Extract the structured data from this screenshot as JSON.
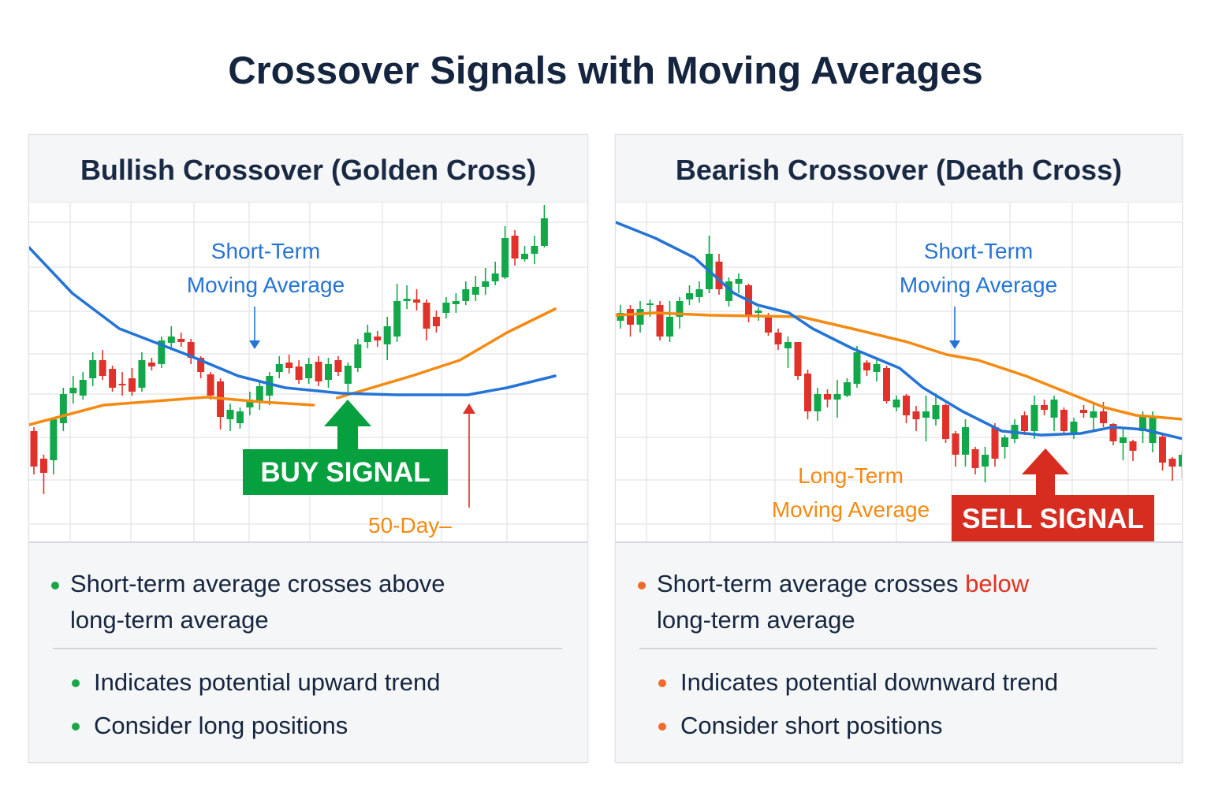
{
  "title": "Crossover Signals with Moving Averages",
  "colors": {
    "up": "#12a84a",
    "down": "#e0322a",
    "short_ma": "#2474d6",
    "long_ma": "#f58a12",
    "buy": "#06a03f",
    "sell": "#d72c20",
    "text": "#16263f"
  },
  "panels": [
    {
      "title": "Bullish Crossover (Golden Cross)",
      "short_label_1": "Short-Term",
      "short_label_2": "Moving Average",
      "long_label": "50-Day–",
      "signal": "BUY SIGNAL",
      "bullet_main": "Short-term average crosses above",
      "bullet_main_2": "long-term average",
      "bullets": [
        "Indicates potential upward trend",
        "Consider long positions"
      ],
      "bullet_color": "#1aa547"
    },
    {
      "title": "Bearish Crossover (Death Cross)",
      "short_label_1": "Short-Term",
      "short_label_2": "Moving Average",
      "long_label_1": "Long-Term",
      "long_label_2": "Moving Average",
      "signal": "SELL SIGNAL",
      "bullet_main_pre": "Short-term average crosses ",
      "bullet_main_hl": "below",
      "bullet_main_2": "long-term average",
      "bullets": [
        "Indicates potential downward trend",
        "Consider short positions"
      ],
      "bullet_color": "#f26a2a"
    }
  ],
  "chart_data": [
    {
      "type": "candlestick",
      "title": "Bullish Crossover (Golden Cross)",
      "grid": true,
      "ylim": [
        0,
        86
      ],
      "candles_ohlc": [
        [
          28,
          29,
          17,
          19
        ],
        [
          21,
          22,
          12,
          17.4
        ],
        [
          20.6,
          31.4,
          17,
          31
        ],
        [
          30,
          39,
          28,
          37.4
        ],
        [
          37.6,
          42,
          35,
          39
        ],
        [
          37,
          43,
          36,
          41
        ],
        [
          41.4,
          48,
          39.4,
          46
        ],
        [
          46,
          48.6,
          41,
          42
        ],
        [
          43.8,
          44.6,
          38,
          39
        ],
        [
          40,
          43,
          37,
          39.6
        ],
        [
          41.4,
          44,
          37,
          38
        ],
        [
          39,
          48,
          38,
          46
        ],
        [
          45.4,
          46.6,
          43.4,
          44.4
        ],
        [
          45,
          52,
          44,
          51
        ],
        [
          50.4,
          54.6,
          49,
          52
        ],
        [
          51.4,
          53,
          49.4,
          50.6
        ],
        [
          50.6,
          51.4,
          45,
          46.6
        ],
        [
          46.6,
          47,
          41.4,
          43
        ],
        [
          42.4,
          43,
          36,
          37
        ],
        [
          40.6,
          41.4,
          28.4,
          31.6
        ],
        [
          31,
          35,
          28,
          33.4
        ],
        [
          30,
          34,
          28.6,
          33
        ],
        [
          34,
          38,
          32,
          36
        ],
        [
          35.4,
          41,
          33.4,
          39.4
        ],
        [
          37,
          43,
          34.6,
          42
        ],
        [
          43,
          47,
          41.4,
          45
        ],
        [
          45.4,
          47.4,
          42.6,
          44
        ],
        [
          44.4,
          46,
          40,
          41
        ],
        [
          41.4,
          46.6,
          40,
          45
        ],
        [
          45.6,
          47,
          39.4,
          40.6
        ],
        [
          41,
          46.6,
          39,
          45
        ],
        [
          46,
          47,
          42,
          43
        ],
        [
          40,
          45.4,
          38,
          44.6
        ],
        [
          44,
          51.4,
          43,
          50
        ],
        [
          50.6,
          55,
          49,
          53
        ],
        [
          52,
          53.4,
          49.4,
          51
        ],
        [
          50,
          57,
          46,
          54.6
        ],
        [
          52,
          65.4,
          50.6,
          61
        ],
        [
          61,
          65,
          59,
          61.6
        ],
        [
          61.4,
          64,
          58.6,
          60.6
        ],
        [
          60.6,
          61.4,
          51,
          54
        ],
        [
          57,
          58.6,
          53,
          54.6
        ],
        [
          58,
          62,
          56.6,
          60.6
        ],
        [
          60.2,
          63,
          58,
          61
        ],
        [
          61,
          66,
          60,
          64
        ],
        [
          62.6,
          67.4,
          61,
          64.6
        ],
        [
          64.6,
          69.4,
          62.6,
          66
        ],
        [
          66,
          71,
          65,
          68
        ],
        [
          67,
          80,
          66.6,
          77
        ],
        [
          77.6,
          79,
          70,
          71.8
        ],
        [
          71.6,
          75,
          71,
          73
        ],
        [
          73,
          77.6,
          70.4,
          75
        ],
        [
          75,
          85.4,
          74.6,
          82
        ]
      ],
      "short_ma": [
        [
          -0.5,
          74.6
        ],
        [
          3.9,
          63
        ],
        [
          8.7,
          54
        ],
        [
          16,
          47
        ],
        [
          20.8,
          42
        ],
        [
          25.6,
          39
        ],
        [
          31.3,
          37.6
        ],
        [
          37,
          37.2
        ],
        [
          44.2,
          37.2
        ],
        [
          48.2,
          39
        ],
        [
          53.1,
          42
        ]
      ],
      "long_ma_segments": [
        [
          [
            -0.5,
            29.6
          ],
          [
            7.1,
            34.6
          ],
          [
            17.6,
            36.6
          ],
          [
            23.2,
            35.4
          ],
          [
            28.5,
            34.6
          ]
        ],
        [
          [
            30.9,
            36.4
          ],
          [
            38.5,
            42
          ],
          [
            43.4,
            46
          ],
          [
            48.2,
            53
          ],
          [
            53.1,
            59
          ]
        ]
      ],
      "signal_bar": 31,
      "signal": "BUY SIGNAL"
    },
    {
      "type": "candlestick",
      "title": "Bearish Crossover (Death Cross)",
      "grid": true,
      "ylim": [
        0,
        86
      ],
      "candles_ohlc": [
        [
          56,
          60,
          54,
          58
        ],
        [
          59,
          60,
          52,
          55
        ],
        [
          55,
          61,
          53,
          59
        ],
        [
          60,
          61.4,
          57,
          60.4
        ],
        [
          60,
          61,
          51,
          52
        ],
        [
          52,
          61,
          50.6,
          57
        ],
        [
          57,
          62,
          54,
          61
        ],
        [
          61.4,
          65,
          60,
          63
        ],
        [
          62,
          66,
          60.6,
          64
        ],
        [
          64,
          77.6,
          63,
          73
        ],
        [
          71,
          73,
          62.6,
          64
        ],
        [
          61,
          67,
          59.6,
          66
        ],
        [
          65.4,
          68,
          63,
          66.6
        ],
        [
          65,
          65.4,
          55.6,
          57
        ],
        [
          58,
          59.4,
          56,
          58.6
        ],
        [
          57.4,
          58,
          52.2,
          53
        ],
        [
          53,
          54,
          48.6,
          50
        ],
        [
          49,
          52,
          44,
          50.6
        ],
        [
          50.6,
          50.6,
          41,
          42
        ],
        [
          42.6,
          43.6,
          31,
          33
        ],
        [
          33,
          39,
          30.6,
          37.4
        ],
        [
          37.4,
          38.6,
          34,
          36
        ],
        [
          36,
          41,
          31.4,
          37.4
        ],
        [
          37,
          41.4,
          36.6,
          40.4
        ],
        [
          40,
          49.6,
          39,
          48
        ],
        [
          45.4,
          46,
          42,
          43.4
        ],
        [
          43,
          46,
          40.6,
          45
        ],
        [
          44,
          44.6,
          35,
          35.6
        ],
        [
          34,
          37,
          33,
          36
        ],
        [
          37,
          37.4,
          30,
          32
        ],
        [
          33,
          34.4,
          28,
          31
        ],
        [
          31.4,
          37,
          25.4,
          33
        ],
        [
          31,
          37.6,
          29.4,
          34.6
        ],
        [
          34.6,
          35,
          25,
          26
        ],
        [
          27.4,
          28,
          19,
          22
        ],
        [
          22,
          31,
          19,
          29
        ],
        [
          23.4,
          24,
          17,
          18.6
        ],
        [
          19,
          24,
          15,
          22
        ],
        [
          29,
          30,
          19,
          21
        ],
        [
          24,
          27,
          21,
          26.4
        ],
        [
          26,
          31,
          25,
          29.6
        ],
        [
          32,
          33,
          27,
          28
        ],
        [
          28,
          37,
          26,
          34.6
        ],
        [
          34.6,
          36,
          32,
          33.4
        ],
        [
          31.4,
          37,
          28,
          36
        ],
        [
          33.4,
          34,
          27,
          28
        ],
        [
          27.4,
          31.4,
          26,
          30.4
        ],
        [
          33.4,
          34.6,
          31.4,
          32.6
        ],
        [
          31.4,
          35,
          28,
          33
        ],
        [
          33,
          35.4,
          29,
          30
        ],
        [
          29.8,
          30,
          24.4,
          25.4
        ],
        [
          25,
          29,
          20.6,
          26.4
        ],
        [
          25.4,
          25.8,
          20.4,
          23
        ],
        [
          28,
          33,
          25,
          32
        ],
        [
          25,
          33,
          22.6,
          31.4
        ],
        [
          26.6,
          27,
          18,
          20
        ],
        [
          21,
          21.4,
          15.4,
          19
        ],
        [
          19,
          23,
          16,
          22
        ]
      ],
      "short_ma": [
        [
          -0.5,
          81
        ],
        [
          3.5,
          77
        ],
        [
          7.5,
          72
        ],
        [
          11.5,
          63
        ],
        [
          13.9,
          60
        ],
        [
          17.1,
          58
        ],
        [
          19.5,
          54
        ],
        [
          23.5,
          49
        ],
        [
          28.3,
          44
        ],
        [
          30.7,
          39
        ],
        [
          34.7,
          33
        ],
        [
          38.7,
          28
        ],
        [
          42.7,
          27
        ],
        [
          46.7,
          27.4
        ],
        [
          49.9,
          29
        ],
        [
          53.1,
          28.4
        ],
        [
          57.1,
          26
        ]
      ],
      "long_ma_segments": [
        [
          [
            -0.5,
            57.4
          ],
          [
            3.5,
            58
          ],
          [
            9.1,
            57.4
          ],
          [
            18.3,
            57
          ],
          [
            23.5,
            54
          ],
          [
            29.1,
            50.6
          ],
          [
            33.1,
            47.4
          ],
          [
            36.3,
            46
          ],
          [
            41.1,
            42
          ],
          [
            45.1,
            38
          ],
          [
            49.1,
            34
          ],
          [
            52.3,
            32
          ],
          [
            57.1,
            31
          ]
        ]
      ],
      "signal_bar": 43,
      "signal": "SELL SIGNAL"
    }
  ]
}
